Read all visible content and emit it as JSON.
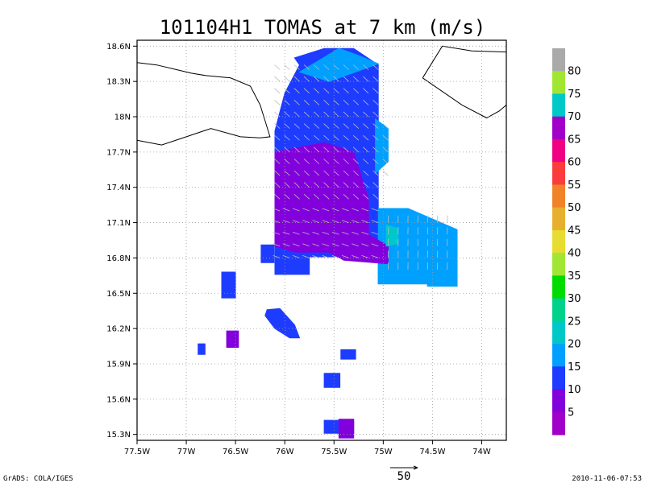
{
  "chart_data": {
    "type": "heatmap",
    "title": "101104H1 TOMAS at 7 km (m/s)",
    "xlim": [
      -77.5,
      -73.75
    ],
    "ylim": [
      15.25,
      18.65
    ],
    "x_ticks": [
      "77.5W",
      "77W",
      "76.5W",
      "76W",
      "75.5W",
      "75W",
      "74.5W",
      "74W"
    ],
    "y_ticks": [
      "15.3N",
      "15.6N",
      "15.9N",
      "16.2N",
      "16.5N",
      "16.8N",
      "17.1N",
      "17.4N",
      "17.7N",
      "18N",
      "18.3N",
      "18.6N"
    ],
    "x_tick_values": [
      -77.5,
      -77,
      -76.5,
      -76,
      -75.5,
      -75,
      -74.5,
      -74
    ],
    "y_tick_values": [
      15.3,
      15.6,
      15.9,
      16.2,
      16.5,
      16.8,
      17.1,
      17.4,
      17.7,
      18.0,
      18.3,
      18.6
    ],
    "grid": true,
    "colorbar": {
      "labels": [
        "5",
        "10",
        "15",
        "20",
        "25",
        "30",
        "35",
        "40",
        "45",
        "50",
        "55",
        "60",
        "65",
        "70",
        "75",
        "80"
      ],
      "colors": [
        "#a000c8",
        "#8200dc",
        "#1e3cff",
        "#00a0ff",
        "#00c8c8",
        "#00d28c",
        "#00dc00",
        "#a0e632",
        "#e6dc32",
        "#e6af2d",
        "#f08228",
        "#fa3c3c",
        "#f00082",
        "#a000c8",
        "#00c8c8",
        "#a0e632",
        "#aaaaaa"
      ]
    },
    "speed_fields": [
      {
        "name": "main-blob",
        "color": "#1e3cff",
        "lon": [
          -75.9,
          -75.6,
          -75.3,
          -75.05,
          -75.05,
          -74.75,
          -74.25,
          -74.25,
          -74.55,
          -74.55,
          -75.05,
          -75.05,
          -75.75,
          -75.75,
          -76.1,
          -76.1,
          -76.0,
          -75.85
        ],
        "lat": [
          18.5,
          18.58,
          18.58,
          18.44,
          17.22,
          17.22,
          17.04,
          16.56,
          16.56,
          16.58,
          16.58,
          16.81,
          16.81,
          16.66,
          16.66,
          17.88,
          18.2,
          18.44
        ]
      },
      {
        "name": "cyan-east",
        "color": "#00a0ff",
        "lon": [
          -75.05,
          -74.75,
          -74.25,
          -74.25,
          -74.55,
          -74.55,
          -75.05
        ],
        "lat": [
          17.22,
          17.22,
          17.04,
          16.56,
          16.56,
          16.58,
          16.58
        ]
      },
      {
        "name": "purple-core",
        "color": "#8200dc",
        "lon": [
          -76.1,
          -75.6,
          -75.3,
          -75.15,
          -75.15,
          -74.95,
          -74.95,
          -75.4,
          -75.55,
          -75.9,
          -76.1
        ],
        "lat": [
          17.7,
          17.78,
          17.7,
          17.3,
          17.0,
          16.9,
          16.75,
          16.78,
          16.85,
          16.85,
          16.9
        ]
      },
      {
        "name": "cyan-north",
        "color": "#00a0ff",
        "lon": [
          -75.85,
          -75.45,
          -75.25,
          -75.05,
          -75.55
        ],
        "lat": [
          18.38,
          18.58,
          18.52,
          18.45,
          18.3
        ]
      },
      {
        "name": "cyan-east-north",
        "color": "#00a0ff",
        "lon": [
          -75.08,
          -74.95,
          -74.95,
          -75.08
        ],
        "lat": [
          17.98,
          17.9,
          17.62,
          17.52
        ]
      },
      {
        "name": "teal-east",
        "color": "#00c8c8",
        "lon": [
          -74.97,
          -74.85,
          -74.85,
          -74.97
        ],
        "lat": [
          17.08,
          17.05,
          16.92,
          16.9
        ]
      },
      {
        "name": "island-1",
        "color": "#1e3cff",
        "lon": [
          -76.24,
          -76.11,
          -76.11,
          -76.24
        ],
        "lat": [
          16.91,
          16.91,
          16.76,
          16.76
        ]
      },
      {
        "name": "island-2",
        "color": "#1e3cff",
        "lon": [
          -76.64,
          -76.5,
          -76.5,
          -76.64
        ],
        "lat": [
          16.68,
          16.68,
          16.46,
          16.46
        ]
      },
      {
        "name": "island-3",
        "color": "#1e3cff",
        "lon": [
          -76.18,
          -76.05,
          -75.9,
          -75.85,
          -75.95,
          -76.1,
          -76.2
        ],
        "lat": [
          16.36,
          16.37,
          16.23,
          16.12,
          16.12,
          16.2,
          16.31
        ]
      },
      {
        "name": "island-4",
        "color": "#8200dc",
        "lon": [
          -76.59,
          -76.47,
          -76.47,
          -76.59
        ],
        "lat": [
          16.18,
          16.18,
          16.04,
          16.04
        ]
      },
      {
        "name": "island-5",
        "color": "#1e3cff",
        "lon": [
          -76.88,
          -76.81,
          -76.81,
          -76.88
        ],
        "lat": [
          16.07,
          16.07,
          15.98,
          15.98
        ]
      },
      {
        "name": "island-6",
        "color": "#1e3cff",
        "lon": [
          -75.6,
          -75.44,
          -75.44,
          -75.6
        ],
        "lat": [
          15.82,
          15.82,
          15.7,
          15.7
        ]
      },
      {
        "name": "island-7",
        "color": "#1e3cff",
        "lon": [
          -75.43,
          -75.28,
          -75.28,
          -75.43
        ],
        "lat": [
          16.02,
          16.02,
          15.94,
          15.94
        ]
      },
      {
        "name": "island-8",
        "color": "#1e3cff",
        "lon": [
          -75.6,
          -75.3,
          -75.3,
          -75.6
        ],
        "lat": [
          15.42,
          15.42,
          15.31,
          15.31
        ]
      },
      {
        "name": "island-9",
        "color": "#8200dc",
        "lon": [
          -75.45,
          -75.3,
          -75.3,
          -75.45
        ],
        "lat": [
          15.43,
          15.43,
          15.27,
          15.27
        ]
      }
    ],
    "coastlines": [
      {
        "name": "hispaniola-west",
        "lon": [
          -77.5,
          -77.3,
          -77.1,
          -76.95,
          -76.8,
          -76.55,
          -76.35,
          -76.25,
          -76.15,
          -76.25,
          -76.45,
          -76.75,
          -77.0,
          -77.25,
          -77.5
        ],
        "lat": [
          18.46,
          18.44,
          18.4,
          18.37,
          18.35,
          18.33,
          18.26,
          18.1,
          17.83,
          17.82,
          17.83,
          17.9,
          17.83,
          17.76,
          17.8
        ]
      },
      {
        "name": "hispaniola-east",
        "lon": [
          -74.6,
          -74.4,
          -74.1,
          -73.75
        ],
        "lat": [
          18.33,
          18.6,
          18.56,
          18.55
        ]
      },
      {
        "name": "hispaniola-east-2",
        "lon": [
          -74.6,
          -74.2,
          -73.95,
          -73.82,
          -73.75
        ],
        "lat": [
          18.33,
          18.1,
          17.99,
          18.05,
          18.1
        ]
      }
    ],
    "scale_arrow_label": "50"
  },
  "footer": {
    "left": "GrADS: COLA/IGES",
    "right": "2010-11-06-07:53"
  }
}
